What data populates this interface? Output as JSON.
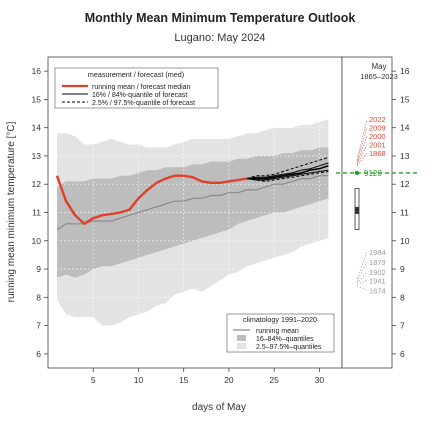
{
  "chart_data": {
    "type": "line",
    "title": "Monthly Mean Minimum Temperature Outlook",
    "subtitle": "Lugano: May 2024",
    "xlabel": "days of May",
    "ylabel": "running mean minimum temperature [°C]",
    "xlim": [
      0,
      32.5
    ],
    "ylim": [
      5.5,
      16.5
    ],
    "x_ticks": [
      5,
      10,
      15,
      20,
      25,
      30
    ],
    "y_ticks": [
      6,
      7,
      8,
      9,
      10,
      11,
      12,
      13,
      14,
      15,
      16
    ],
    "grid": true,
    "legend_forecast": {
      "title": "measurement / forecast (med)",
      "items": [
        {
          "label": "running mean / forecast median",
          "color": "#e0402b",
          "style": "solid-thick"
        },
        {
          "label": "16% / 84%-quantile of forecast",
          "color": "#000000",
          "style": "solid"
        },
        {
          "label": "2.5% / 97.5%-quantile of forecast",
          "color": "#000000",
          "style": "dashed"
        }
      ]
    },
    "legend_climatology": {
      "title": "climatology 1991–2020",
      "items": [
        {
          "label": "running mean",
          "kind": "line",
          "color": "#8a8a8a"
        },
        {
          "label": "16–84%–quantiles",
          "kind": "box",
          "color": "#bdbdbd"
        },
        {
          "label": "2.5–97.5%–quantiles",
          "kind": "box",
          "color": "#e3e3e3"
        }
      ]
    },
    "colors": {
      "measurement": "#e0402b",
      "clim_mean": "#8a8a8a",
      "clim_inner": "#bdbdbd",
      "clim_outer": "#e3e3e3",
      "forecast_band": "#bebebe",
      "record_green": "#2e9b2e",
      "warm_years": "#d04a3a",
      "cold_years": "#9a9a9a"
    },
    "climatology": {
      "x": [
        1,
        2,
        3,
        4,
        5,
        6,
        7,
        8,
        9,
        10,
        11,
        12,
        13,
        14,
        15,
        16,
        17,
        18,
        19,
        20,
        21,
        22,
        23,
        24,
        25,
        26,
        27,
        28,
        29,
        30,
        31
      ],
      "p025": [
        7.9,
        7.4,
        7.3,
        7.3,
        7.3,
        7.0,
        7.0,
        7.1,
        7.3,
        7.4,
        7.5,
        7.7,
        7.8,
        8.1,
        8.2,
        8.3,
        8.2,
        8.4,
        8.6,
        8.8,
        8.9,
        9.1,
        9.2,
        9.3,
        9.4,
        9.5,
        9.6,
        9.8,
        9.9,
        10.0,
        10.1
      ],
      "p16": [
        8.7,
        8.8,
        8.7,
        8.8,
        9.0,
        9.1,
        9.1,
        9.2,
        9.3,
        9.4,
        9.5,
        9.6,
        9.7,
        9.8,
        9.9,
        10.0,
        10.1,
        10.2,
        10.3,
        10.4,
        10.6,
        10.7,
        10.8,
        10.9,
        11.0,
        11.0,
        11.1,
        11.2,
        11.3,
        11.4,
        11.5
      ],
      "mean": [
        10.4,
        10.6,
        10.6,
        10.6,
        10.7,
        10.7,
        10.7,
        10.8,
        10.9,
        11.0,
        11.1,
        11.2,
        11.3,
        11.4,
        11.4,
        11.5,
        11.5,
        11.6,
        11.6,
        11.7,
        11.7,
        11.8,
        11.8,
        11.9,
        12.0,
        12.0,
        12.1,
        12.2,
        12.2,
        12.3,
        12.3
      ],
      "p84": [
        11.9,
        12.1,
        12.1,
        12.1,
        12.2,
        12.2,
        12.2,
        12.3,
        12.3,
        12.4,
        12.5,
        12.5,
        12.6,
        12.6,
        12.6,
        12.7,
        12.7,
        12.8,
        12.8,
        12.8,
        12.9,
        12.9,
        13.0,
        13.0,
        13.0,
        13.1,
        13.1,
        13.2,
        13.2,
        13.3,
        13.3
      ],
      "p975": [
        13.8,
        13.8,
        13.7,
        13.4,
        13.4,
        13.5,
        13.6,
        13.5,
        13.4,
        13.4,
        13.3,
        13.3,
        13.3,
        13.4,
        13.5,
        13.6,
        13.6,
        13.6,
        13.6,
        13.6,
        13.7,
        13.8,
        13.8,
        13.9,
        14.0,
        14.0,
        14.0,
        14.1,
        14.1,
        14.2,
        14.3
      ]
    },
    "measurement": {
      "x": [
        1,
        2,
        3,
        4,
        5,
        6,
        7,
        8,
        9,
        10,
        11,
        12,
        13,
        14,
        15,
        16,
        17,
        18,
        19,
        20,
        21,
        22
      ],
      "y": [
        12.3,
        11.4,
        10.9,
        10.6,
        10.8,
        10.9,
        10.95,
        11.0,
        11.1,
        11.5,
        11.8,
        12.05,
        12.2,
        12.3,
        12.3,
        12.25,
        12.1,
        12.05,
        12.05,
        12.1,
        12.15,
        12.2
      ]
    },
    "forecast": {
      "x": [
        22,
        23,
        24,
        25,
        26,
        27,
        28,
        29,
        30,
        31
      ],
      "median": [
        12.2,
        12.2,
        12.2,
        12.25,
        12.3,
        12.35,
        12.4,
        12.5,
        12.55,
        12.65
      ],
      "p16": [
        12.2,
        12.15,
        12.15,
        12.2,
        12.25,
        12.3,
        12.35,
        12.4,
        12.45,
        12.5
      ],
      "p84": [
        12.2,
        12.25,
        12.25,
        12.3,
        12.35,
        12.4,
        12.5,
        12.55,
        12.65,
        12.75
      ],
      "p025": [
        12.2,
        12.15,
        12.1,
        12.15,
        12.2,
        12.25,
        12.3,
        12.35,
        12.4,
        12.45
      ],
      "p975": [
        12.2,
        12.3,
        12.3,
        12.35,
        12.45,
        12.55,
        12.65,
        12.75,
        12.85,
        12.95
      ]
    },
    "side_panel": {
      "title": "May",
      "subtitle": "1865–2023",
      "box": {
        "p025": 10.4,
        "p25": 10.95,
        "median": 11.1,
        "p75": 11.2,
        "p975": 11.85
      },
      "current_value": 12.4,
      "current_label": "9120",
      "warm_years": [
        {
          "year": "2022",
          "label_y": 14.3
        },
        {
          "year": "2009",
          "label_y": 14.0
        },
        {
          "year": "2000",
          "label_y": 13.7
        },
        {
          "year": "2001",
          "label_y": 13.4
        },
        {
          "year": "1868",
          "label_y": 13.1
        }
      ],
      "warm_values": [
        12.85,
        12.8,
        12.75,
        12.7,
        12.65
      ],
      "cold_years": [
        {
          "year": "1984",
          "label_y": 9.6
        },
        {
          "year": "1879",
          "label_y": 9.25
        },
        {
          "year": "1902",
          "label_y": 8.9
        },
        {
          "year": "1941",
          "label_y": 8.6
        },
        {
          "year": "1874",
          "label_y": 8.25
        }
      ],
      "cold_values": [
        8.65,
        8.55,
        8.5,
        8.45,
        8.4
      ]
    }
  }
}
